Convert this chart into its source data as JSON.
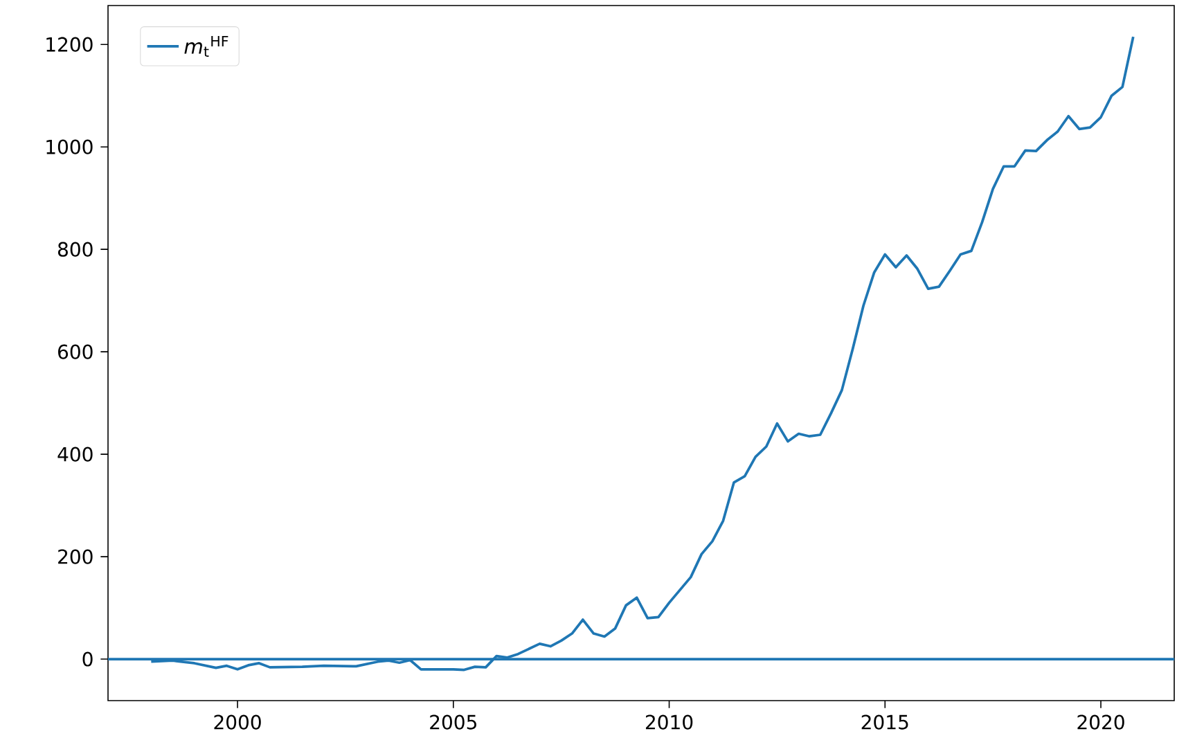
{
  "chart_data": {
    "type": "line",
    "xlim": [
      1997.0,
      2021.7
    ],
    "ylim": [
      -81,
      1276
    ],
    "xticks": [
      2000,
      2005,
      2010,
      2015,
      2020
    ],
    "yticks": [
      0,
      200,
      400,
      600,
      800,
      1000,
      1200
    ],
    "grid": false,
    "legend": "top left",
    "marker": "none",
    "line_style": "solid",
    "ref_lines": [
      {
        "axis": "y",
        "value": 0,
        "color": "#1f77b4"
      }
    ],
    "series": [
      {
        "name": "*m*$_{t}$$^{HF}$",
        "color": "#1f77b4",
        "x": [
          1998.0,
          1998.5,
          1999.0,
          1999.5,
          1999.75,
          2000.0,
          2000.25,
          2000.5,
          2000.75,
          2001.5,
          2002.0,
          2002.75,
          2003.25,
          2003.5,
          2003.75,
          2004.0,
          2004.25,
          2005.0,
          2005.25,
          2005.5,
          2005.75,
          2006.0,
          2006.25,
          2006.5,
          2006.75,
          2007.0,
          2007.25,
          2007.5,
          2007.75,
          2008.0,
          2008.25,
          2008.5,
          2008.75,
          2009.0,
          2009.25,
          2009.5,
          2009.75,
          2010.0,
          2010.25,
          2010.5,
          2010.75,
          2011.0,
          2011.25,
          2011.5,
          2011.75,
          2012.0,
          2012.25,
          2012.5,
          2012.75,
          2013.0,
          2013.25,
          2013.5,
          2013.75,
          2014.0,
          2014.25,
          2014.5,
          2014.75,
          2015.0,
          2015.25,
          2015.5,
          2015.75,
          2016.0,
          2016.25,
          2016.5,
          2016.75,
          2017.0,
          2017.25,
          2017.5,
          2017.75,
          2018.0,
          2018.25,
          2018.5,
          2018.75,
          2019.0,
          2019.25,
          2019.5,
          2019.75,
          2020.0,
          2020.25,
          2020.5,
          2020.75
        ],
        "values": [
          -5,
          -3,
          -8,
          -17,
          -13,
          -20,
          -12,
          -8,
          -16,
          -15,
          -13,
          -14,
          -5,
          -3,
          -7,
          -2,
          -20,
          -20,
          -21,
          -15,
          -16,
          6,
          3,
          10,
          20,
          30,
          25,
          36,
          50,
          77,
          50,
          44,
          60,
          105,
          120,
          80,
          82,
          110,
          135,
          160,
          205,
          230,
          270,
          345,
          357,
          395,
          415,
          460,
          425,
          440,
          435,
          438,
          480,
          525,
          605,
          690,
          755,
          790,
          765,
          788,
          762,
          723,
          727,
          758,
          790,
          797,
          853,
          918,
          962,
          962,
          993,
          992,
          1013,
          1030,
          1060,
          1035,
          1038,
          1058,
          1100,
          1117,
          1215
        ]
      }
    ]
  }
}
